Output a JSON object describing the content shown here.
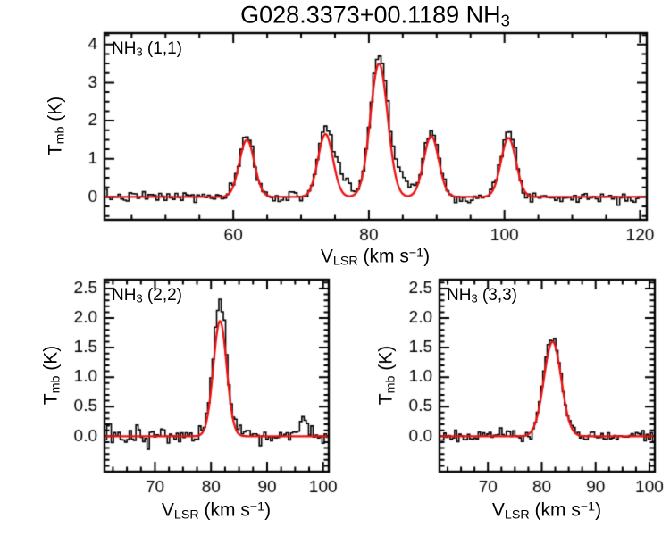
{
  "title": {
    "main": "G028.3373+00.1189 NH",
    "sub": "3"
  },
  "ylabel": {
    "main": "T",
    "sub": "mb",
    "unit": " (K)"
  },
  "xlabel": {
    "main": "V",
    "sub": "LSR",
    "pre": " (km s",
    "sup": "−1",
    "post": ")"
  },
  "chart_data": [
    {
      "id": "nh3_11",
      "type": "line",
      "label": {
        "main": "NH",
        "sub": "3",
        "rest": " (1,1)"
      },
      "xlabel": "V_LSR (km s^-1)",
      "ylabel": "T_mb (K)",
      "xlim": [
        41,
        121
      ],
      "ylim": [
        -0.6,
        4.3
      ],
      "xticks": [
        60,
        80,
        100,
        120
      ],
      "yticks": [
        0,
        1,
        2,
        3,
        4
      ],
      "y_tick_decimals": 0,
      "x_minor_step": 5,
      "y_minor_step": 0.25,
      "grid": false,
      "legend": null,
      "channel_width": 0.4,
      "noise_rms": 0.07,
      "seed": 7,
      "baseline": 0,
      "line_color": "#000000",
      "fit_color": "#ee1111",
      "components": [
        {
          "center": 62.0,
          "amplitude": 1.5,
          "data_amplitude": 1.55,
          "fwhm": 2.6
        },
        {
          "center": 73.6,
          "amplitude": 1.65,
          "data_amplitude": 1.8,
          "fwhm": 2.6
        },
        {
          "center": 81.5,
          "amplitude": 3.5,
          "data_amplitude": 3.7,
          "fwhm": 3.0
        },
        {
          "center": 89.2,
          "amplitude": 1.6,
          "data_amplitude": 1.75,
          "fwhm": 2.6
        },
        {
          "center": 100.6,
          "amplitude": 1.55,
          "data_amplitude": 1.7,
          "fwhm": 2.6
        }
      ],
      "data_only_components": [
        {
          "center": 76.0,
          "amplitude": 0.5,
          "fwhm": 2.5
        },
        {
          "center": 84.6,
          "amplitude": 0.55,
          "fwhm": 3.0
        }
      ]
    },
    {
      "id": "nh3_22",
      "type": "line",
      "label": {
        "main": "NH",
        "sub": "3",
        "rest": " (2,2)"
      },
      "xlabel": "V_LSR (km s^-1)",
      "ylabel": "T_mb (K)",
      "xlim": [
        61,
        101
      ],
      "ylim": [
        -0.6,
        2.65
      ],
      "xticks": [
        70,
        80,
        90,
        100
      ],
      "yticks": [
        0.0,
        0.5,
        1.0,
        1.5,
        2.0,
        2.5
      ],
      "y_tick_decimals": 1,
      "x_minor_step": 2.5,
      "y_minor_step": 0.1,
      "grid": false,
      "legend": null,
      "channel_width": 0.4,
      "noise_rms": 0.08,
      "seed": 13,
      "baseline": 0,
      "line_color": "#000000",
      "fit_color": "#ee1111",
      "components": [
        {
          "center": 81.6,
          "amplitude": 1.95,
          "data_amplitude": 2.25,
          "fwhm": 2.8
        }
      ],
      "data_only_components": [
        {
          "center": 96.5,
          "amplitude": 0.3,
          "fwhm": 1.5
        }
      ]
    },
    {
      "id": "nh3_33",
      "type": "line",
      "label": {
        "main": "NH",
        "sub": "3",
        "rest": " (3,3)"
      },
      "xlabel": "V_LSR (km s^-1)",
      "ylabel": "T_mb (K)",
      "xlim": [
        61,
        101
      ],
      "ylim": [
        -0.6,
        2.65
      ],
      "xticks": [
        70,
        80,
        90,
        100
      ],
      "yticks": [
        0.0,
        0.5,
        1.0,
        1.5,
        2.0,
        2.5
      ],
      "y_tick_decimals": 1,
      "x_minor_step": 2.5,
      "y_minor_step": 0.1,
      "grid": false,
      "legend": null,
      "channel_width": 0.4,
      "noise_rms": 0.055,
      "seed": 21,
      "baseline": 0,
      "line_color": "#000000",
      "fit_color": "#ee1111",
      "components": [
        {
          "center": 82.0,
          "amplitude": 1.6,
          "data_amplitude": 1.7,
          "fwhm": 3.8
        }
      ],
      "data_only_components": []
    }
  ]
}
